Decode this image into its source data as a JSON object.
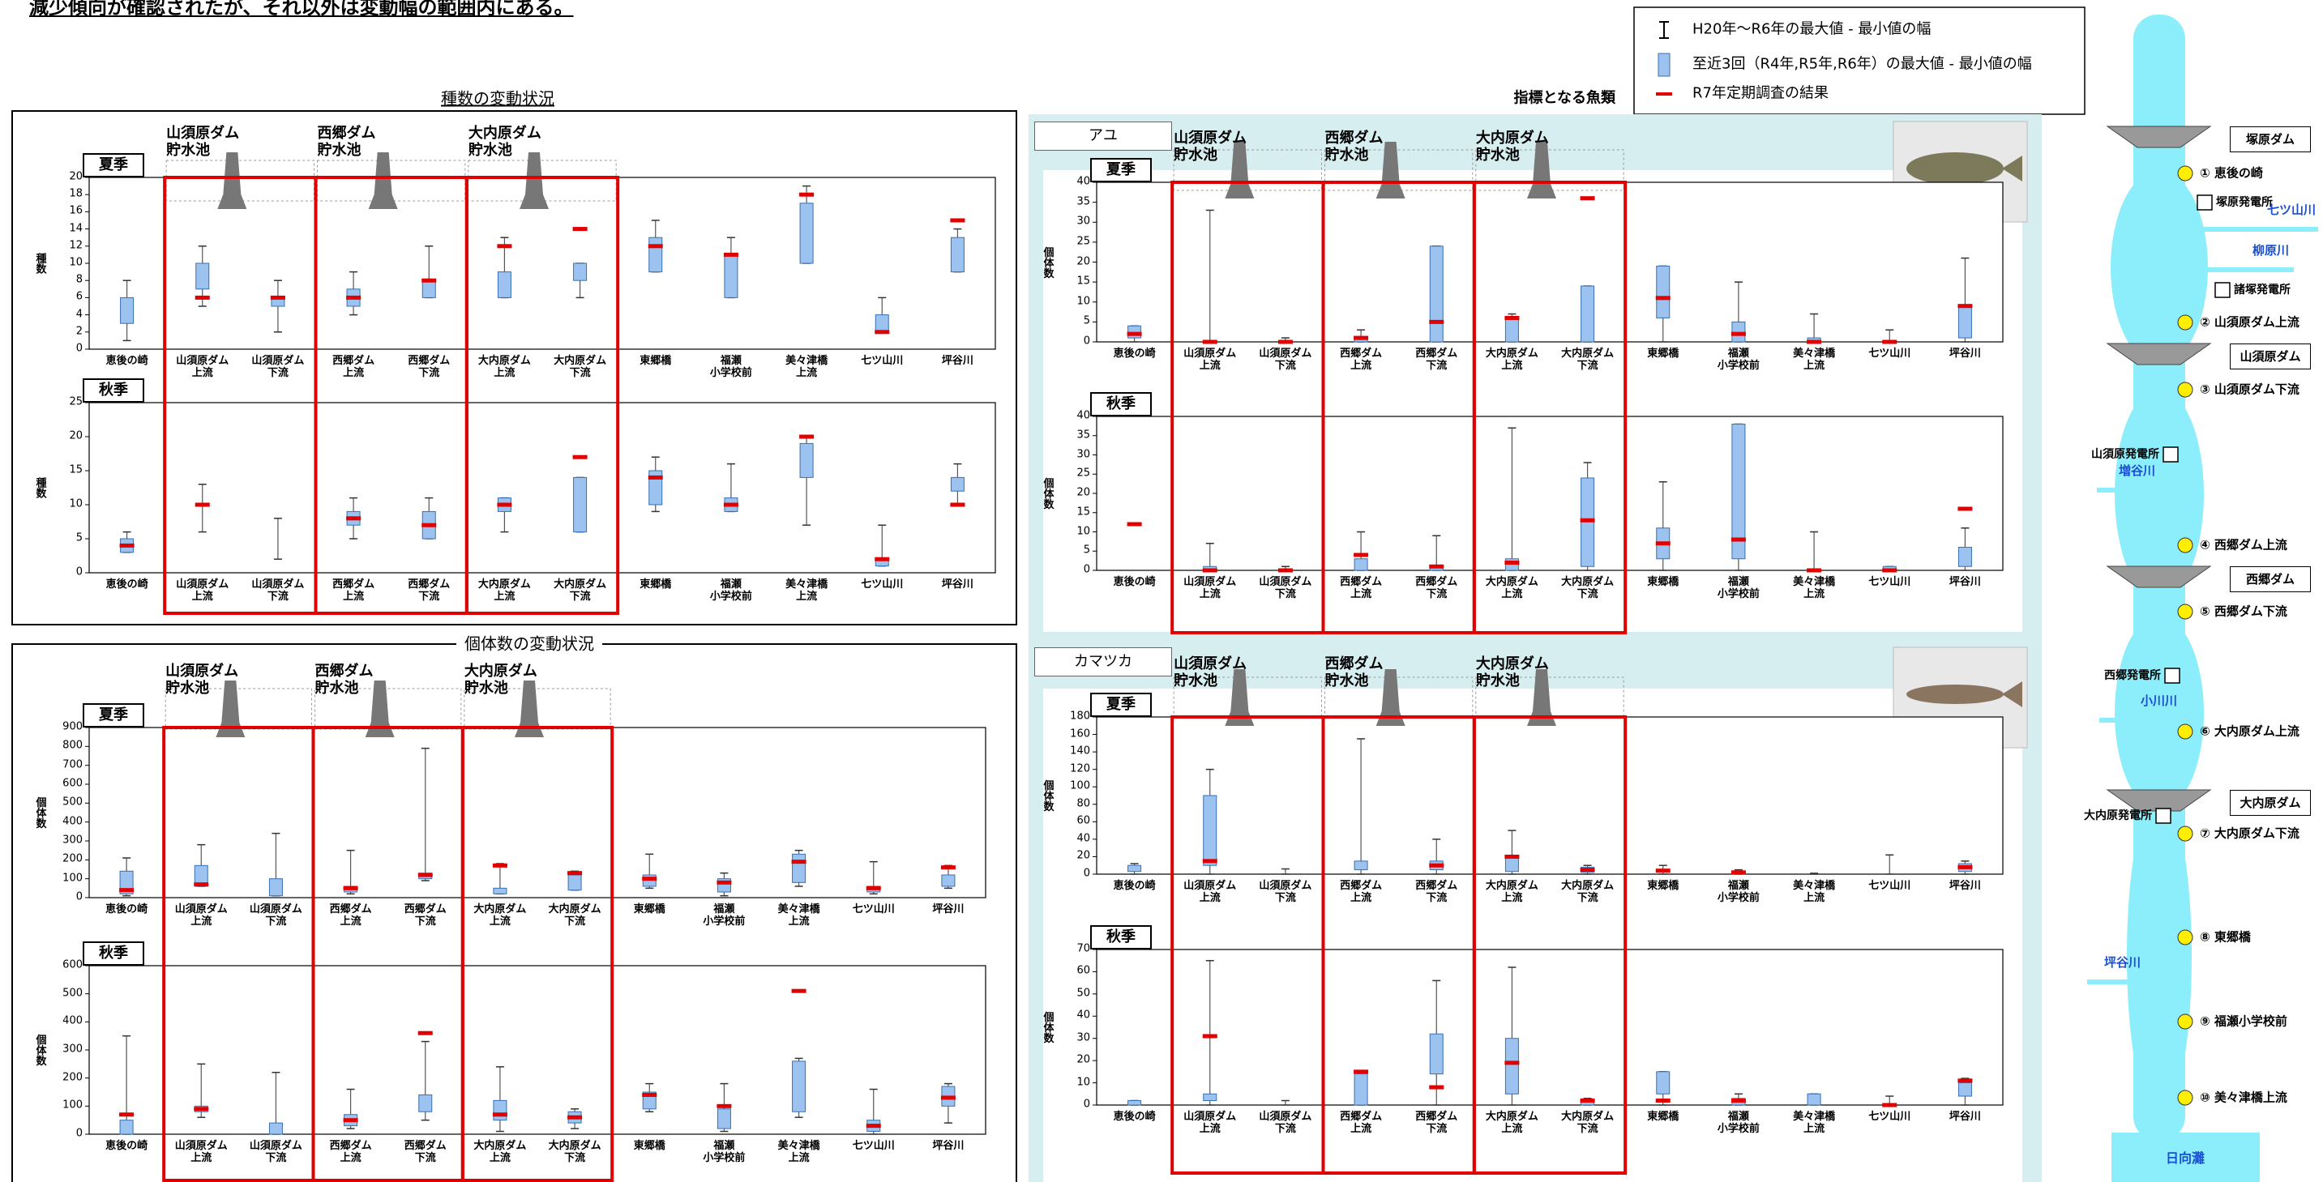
{
  "header": {
    "text": "減少傾向が確認されたが、それ以外は変動幅の範囲内にある。"
  },
  "legend": [
    "H20年～R6年の最大値 - 最小値の幅",
    "至近3回（R4年,R5年,R6年）の最大値 - 最小値の幅",
    "R7年定期調査の結果"
  ],
  "sections": [
    {
      "title": "種数の変動状況",
      "dams": [
        "山須原ダム\n貯水池",
        "西郷ダム\n貯水池",
        "大内原ダム\n貯水池"
      ]
    },
    {
      "title": "個体数の変動状況",
      "dams": [
        "山須原ダム\n貯水池",
        "西郷ダム\n貯水池",
        "大内原ダム\n貯水池"
      ]
    }
  ],
  "index_title": "指標となる魚類",
  "fish": [
    {
      "name": "アユ",
      "dams": [
        "山須原ダム\n貯水池",
        "西郷ダム\n貯水池",
        "大内原ダム\n貯水池"
      ]
    },
    {
      "name": "カマツカ",
      "dams": [
        "山須原ダム\n貯水池",
        "西郷ダム\n貯水池",
        "大内原ダム\n貯水池"
      ]
    }
  ],
  "chart_data": [
    {
      "type": "box",
      "season": "夏季",
      "ylabel": "種数",
      "ylim": [
        0,
        20
      ],
      "yticks": [
        0,
        2,
        4,
        6,
        8,
        10,
        12,
        14,
        16,
        18,
        20
      ],
      "categories": [
        "恵後の崎",
        "山須原ダム\n上流",
        "山須原ダム\n下流",
        "西郷ダム\n上流",
        "西郷ダム\n下流",
        "大内原ダム\n上流",
        "大内原ダム\n下流",
        "東郷橋",
        "福瀬\n小学校前",
        "美々津橋\n上流",
        "七ツ山川",
        "坪谷川"
      ],
      "range_min": [
        1,
        5,
        2,
        4,
        6,
        6,
        6,
        9,
        6,
        10,
        2,
        9
      ],
      "range_max": [
        8,
        12,
        8,
        9,
        12,
        13,
        10,
        15,
        13,
        19,
        6,
        14
      ],
      "recent_min": [
        3,
        7,
        5,
        5,
        6,
        6,
        8,
        9,
        6,
        10,
        2,
        9
      ],
      "recent_max": [
        6,
        10,
        6,
        7,
        8,
        9,
        10,
        13,
        11,
        17,
        4,
        13
      ],
      "result": [
        null,
        6,
        6,
        6,
        8,
        12,
        14,
        12,
        11,
        18,
        2,
        15
      ]
    },
    {
      "type": "box",
      "season": "秋季",
      "ylabel": "種数",
      "ylim": [
        0,
        25
      ],
      "yticks": [
        0,
        5,
        10,
        15,
        20,
        25
      ],
      "categories": [
        "恵後の崎",
        "山須原ダム\n上流",
        "山須原ダム\n下流",
        "西郷ダム\n上流",
        "西郷ダム\n下流",
        "大内原ダム\n上流",
        "大内原ダム\n下流",
        "東郷橋",
        "福瀬\n小学校前",
        "美々津橋\n上流",
        "七ツ山川",
        "坪谷川"
      ],
      "range_min": [
        3,
        6,
        2,
        5,
        5,
        6,
        6,
        9,
        9,
        7,
        1,
        10
      ],
      "range_max": [
        6,
        13,
        8,
        11,
        11,
        11,
        14,
        17,
        16,
        20,
        7,
        16
      ],
      "recent_min": [
        3,
        null,
        null,
        7,
        5,
        9,
        6,
        10,
        9,
        14,
        1,
        12
      ],
      "recent_max": [
        5,
        null,
        null,
        9,
        9,
        11,
        14,
        15,
        11,
        19,
        2,
        14
      ],
      "result": [
        4,
        10,
        null,
        8,
        7,
        10,
        17,
        14,
        10,
        20,
        2,
        10
      ]
    },
    {
      "type": "box",
      "season": "夏季",
      "ylabel": "個体数",
      "ylim": [
        0,
        900
      ],
      "yticks": [
        0,
        100,
        200,
        300,
        400,
        500,
        600,
        700,
        800,
        900
      ],
      "categories": [
        "恵後の崎",
        "山須原ダム\n上流",
        "山須原ダム\n下流",
        "西郷ダム\n上流",
        "西郷ダム\n下流",
        "大内原ダム\n上流",
        "大内原ダム\n下流",
        "東郷橋",
        "福瀬\n小学校前",
        "美々津橋\n上流",
        "七ツ山川",
        "坪谷川"
      ],
      "range_min": [
        10,
        60,
        10,
        20,
        90,
        20,
        40,
        50,
        10,
        60,
        20,
        50
      ],
      "range_max": [
        210,
        280,
        340,
        250,
        790,
        180,
        140,
        230,
        130,
        250,
        190,
        170
      ],
      "recent_min": [
        20,
        60,
        10,
        30,
        100,
        20,
        40,
        60,
        30,
        80,
        30,
        60
      ],
      "recent_max": [
        140,
        170,
        100,
        60,
        130,
        50,
        120,
        120,
        100,
        230,
        60,
        120
      ],
      "result": [
        40,
        70,
        null,
        50,
        120,
        170,
        130,
        100,
        80,
        190,
        50,
        160
      ]
    },
    {
      "type": "box",
      "season": "秋季",
      "ylabel": "個体数",
      "ylim": [
        0,
        600
      ],
      "yticks": [
        0,
        100,
        200,
        300,
        400,
        500,
        600
      ],
      "categories": [
        "恵後の崎",
        "山須原ダム\n上流",
        "山須原ダム\n下流",
        "西郷ダム\n上流",
        "西郷ダム\n下流",
        "大内原ダム\n上流",
        "大内原ダム\n下流",
        "東郷橋",
        "福瀬\n小学校前",
        "美々津橋\n上流",
        "七ツ山川",
        "坪谷川"
      ],
      "range_min": [
        0,
        60,
        0,
        20,
        50,
        10,
        20,
        80,
        10,
        60,
        0,
        40
      ],
      "range_max": [
        350,
        250,
        220,
        160,
        330,
        240,
        90,
        180,
        180,
        270,
        160,
        180
      ],
      "recent_min": [
        0,
        80,
        0,
        30,
        80,
        50,
        40,
        90,
        20,
        80,
        10,
        100
      ],
      "recent_max": [
        50,
        100,
        40,
        70,
        140,
        120,
        80,
        150,
        90,
        260,
        50,
        170
      ],
      "result": [
        70,
        90,
        null,
        50,
        360,
        70,
        60,
        140,
        100,
        510,
        30,
        130
      ]
    },
    {
      "type": "box",
      "season": "夏季",
      "ylabel": "個体数",
      "ylim": [
        0,
        40
      ],
      "yticks": [
        0,
        5,
        10,
        15,
        20,
        25,
        30,
        35,
        40
      ],
      "categories": [
        "恵後の崎",
        "山須原ダム\n上流",
        "山須原ダム\n下流",
        "西郷ダム\n上流",
        "西郷ダム\n下流",
        "大内原ダム\n上流",
        "大内原ダム\n下流",
        "東郷橋",
        "福瀬\n小学校前",
        "美々津橋\n上流",
        "七ツ山川",
        "坪谷川"
      ],
      "range_min": [
        0,
        0,
        0,
        0,
        0,
        0,
        0,
        0,
        0,
        0,
        0,
        0
      ],
      "range_max": [
        4,
        33,
        1,
        3,
        24,
        7,
        14,
        19,
        15,
        7,
        3,
        21
      ],
      "recent_min": [
        1,
        null,
        null,
        0,
        0,
        0,
        0,
        6,
        0,
        0,
        null,
        1
      ],
      "recent_max": [
        4,
        null,
        null,
        1,
        24,
        6,
        14,
        19,
        5,
        1,
        null,
        9
      ],
      "result": [
        2,
        0,
        0,
        1,
        5,
        6,
        36,
        11,
        2,
        0,
        0,
        9
      ]
    },
    {
      "type": "box",
      "season": "秋季",
      "ylabel": "個体数",
      "ylim": [
        0,
        40
      ],
      "yticks": [
        0,
        5,
        10,
        15,
        20,
        25,
        30,
        35,
        40
      ],
      "categories": [
        "恵後の崎",
        "山須原ダム\n上流",
        "山須原ダム\n下流",
        "西郷ダム\n上流",
        "西郷ダム\n下流",
        "大内原ダム\n上流",
        "大内原ダム\n下流",
        "東郷橋",
        "福瀬\n小学校前",
        "美々津橋\n上流",
        "七ツ山川",
        "坪谷川"
      ],
      "range_min": [
        null,
        0,
        0,
        0,
        0,
        0,
        0,
        0,
        0,
        0,
        0,
        0
      ],
      "range_max": [
        null,
        7,
        1,
        10,
        9,
        37,
        28,
        23,
        38,
        10,
        1,
        11
      ],
      "recent_min": [
        null,
        0,
        null,
        0,
        0,
        0,
        1,
        3,
        3,
        null,
        0,
        1
      ],
      "recent_max": [
        null,
        1,
        null,
        3,
        1,
        3,
        24,
        11,
        38,
        null,
        1,
        6
      ],
      "result": [
        12,
        0,
        0,
        4,
        1,
        2,
        13,
        7,
        8,
        0,
        0,
        16
      ]
    },
    {
      "type": "box",
      "season": "夏季",
      "ylabel": "個体数",
      "ylim": [
        0,
        180
      ],
      "yticks": [
        0,
        20,
        40,
        60,
        80,
        100,
        120,
        140,
        160,
        180
      ],
      "categories": [
        "恵後の崎",
        "山須原ダム\n上流",
        "山須原ダム\n下流",
        "西郷ダム\n上流",
        "西郷ダム\n下流",
        "大内原ダム\n上流",
        "大内原ダム\n下流",
        "東郷橋",
        "福瀬\n小学校前",
        "美々津橋\n上流",
        "七ツ山川",
        "坪谷川"
      ],
      "range_min": [
        0,
        0,
        0,
        0,
        0,
        0,
        0,
        0,
        0,
        0,
        0,
        0
      ],
      "range_max": [
        12,
        120,
        6,
        155,
        40,
        50,
        10,
        10,
        5,
        1,
        22,
        15
      ],
      "recent_min": [
        3,
        10,
        null,
        5,
        5,
        3,
        2,
        null,
        null,
        null,
        null,
        3
      ],
      "recent_max": [
        10,
        90,
        null,
        15,
        15,
        20,
        8,
        null,
        null,
        null,
        null,
        12
      ],
      "result": [
        null,
        15,
        null,
        null,
        10,
        20,
        5,
        4,
        2,
        null,
        null,
        8
      ]
    },
    {
      "type": "box",
      "season": "秋季",
      "ylabel": "個体数",
      "ylim": [
        0,
        70
      ],
      "yticks": [
        0,
        10,
        20,
        30,
        40,
        50,
        60,
        70
      ],
      "categories": [
        "恵後の崎",
        "山須原ダム\n上流",
        "山須原ダム\n下流",
        "西郷ダム\n上流",
        "西郷ダム\n下流",
        "大内原ダム\n上流",
        "大内原ダム\n下流",
        "東郷橋",
        "福瀬\n小学校前",
        "美々津橋\n上流",
        "七ツ山川",
        "坪谷川"
      ],
      "range_min": [
        0,
        0,
        0,
        0,
        0,
        0,
        0,
        0,
        0,
        0,
        0,
        0
      ],
      "range_max": [
        2,
        65,
        2,
        15,
        56,
        62,
        3,
        15,
        5,
        5,
        4,
        12
      ],
      "recent_min": [
        0,
        2,
        null,
        0,
        14,
        5,
        0,
        5,
        0,
        0,
        null,
        4
      ],
      "recent_max": [
        2,
        5,
        null,
        14,
        32,
        30,
        2,
        15,
        3,
        5,
        null,
        10
      ],
      "result": [
        null,
        31,
        null,
        15,
        8,
        19,
        2,
        2,
        2,
        null,
        0,
        11
      ]
    }
  ],
  "river": {
    "dams": [
      "塚原ダム",
      "山須原ダム",
      "西郷ダム",
      "大内原ダム"
    ],
    "stations": [
      "① 恵後の崎",
      "② 山須原ダム上流",
      "③ 山須原ダム下流",
      "④ 西郷ダム上流",
      "⑤ 西郷ダム下流",
      "⑥ 大内原ダム上流",
      "⑦ 大内原ダム下流",
      "⑧ 東郷橋",
      "⑨ 福瀬小学校前",
      "⑩ 美々津橋上流"
    ],
    "power": [
      "塚原発電所",
      "諸塚発電所",
      "山須原発電所",
      "西郷発電所",
      "大内原発電所"
    ],
    "tributaries": [
      "七ツ山川",
      "柳原川",
      "増谷川",
      "小川川",
      "坪谷川"
    ],
    "sea": "日向灘"
  }
}
